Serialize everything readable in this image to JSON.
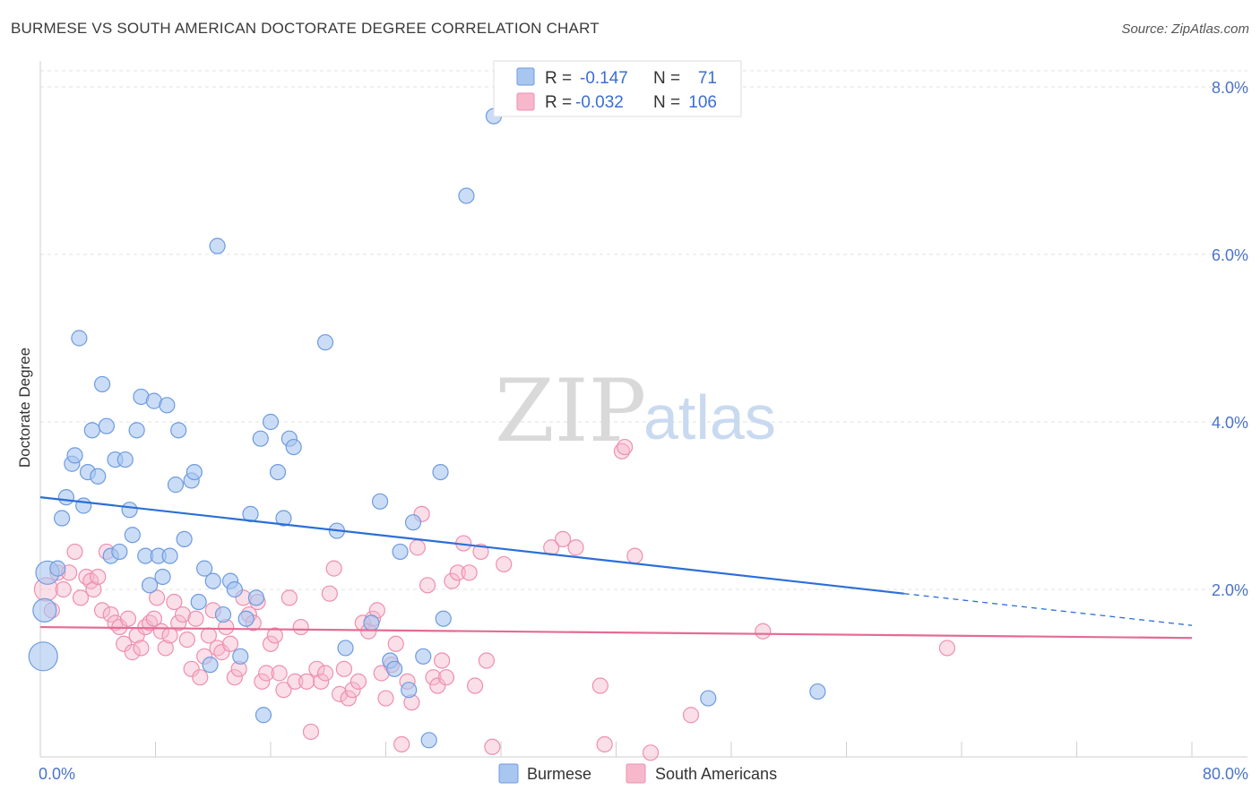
{
  "title": "BURMESE VS SOUTH AMERICAN DOCTORATE DEGREE CORRELATION CHART",
  "source": "Source: ZipAtlas.com",
  "watermark": {
    "zip": "ZIP",
    "atlas": "atlas"
  },
  "colors": {
    "burmese_fill": "#a9c6f0",
    "burmese_stroke": "#6d9be0",
    "burmese_line": "#2b6fd6",
    "south_fill": "#f7b8cc",
    "south_stroke": "#ee8fb0",
    "south_line": "#e46b95",
    "axis_text": "#4a74c9"
  },
  "legend": {
    "burmese": {
      "r_label": "R =",
      "r_value": "-0.147",
      "n_label": "N =",
      "n_value": "71"
    },
    "south": {
      "r_label": "R =",
      "r_value": "-0.032",
      "n_label": "N =",
      "n_value": "106"
    }
  },
  "bottom_legend": [
    "Burmese",
    "South Americans"
  ],
  "chart_data": {
    "type": "scatter",
    "ylabel": "Doctorate Degree",
    "xlim": [
      0,
      80
    ],
    "ylim": [
      0,
      8
    ],
    "x_tick_labels": {
      "min": "0.0%",
      "max": "80.0%"
    },
    "y_tick_labels": [
      {
        "value": 2,
        "label": "2.0%"
      },
      {
        "value": 4,
        "label": "4.0%"
      },
      {
        "value": 6,
        "label": "6.0%"
      },
      {
        "value": 8,
        "label": "8.0%"
      }
    ],
    "grid": true,
    "series": [
      {
        "name": "Burmese",
        "trend": {
          "x0": 0,
          "y0": 3.1,
          "x1": 60,
          "y1": 1.95,
          "dashed_to_x": 80,
          "dashed_to_y": 1.57
        },
        "points": [
          [
            0.2,
            1.2,
            3
          ],
          [
            0.3,
            1.75,
            2
          ],
          [
            0.5,
            2.2,
            2
          ],
          [
            1.2,
            2.25,
            1
          ],
          [
            1.5,
            2.85,
            1
          ],
          [
            1.8,
            3.1,
            1
          ],
          [
            2.2,
            3.5,
            1
          ],
          [
            2.4,
            3.6,
            1
          ],
          [
            2.7,
            5.0,
            1
          ],
          [
            3.0,
            3.0,
            1
          ],
          [
            3.3,
            3.4,
            1
          ],
          [
            3.6,
            3.9,
            1
          ],
          [
            4.0,
            3.35,
            1
          ],
          [
            4.3,
            4.45,
            1
          ],
          [
            4.6,
            3.95,
            1
          ],
          [
            4.9,
            2.4,
            1
          ],
          [
            5.2,
            3.55,
            1
          ],
          [
            5.5,
            2.45,
            1
          ],
          [
            5.9,
            3.55,
            1
          ],
          [
            6.2,
            2.95,
            1
          ],
          [
            6.4,
            2.65,
            1
          ],
          [
            6.7,
            3.9,
            1
          ],
          [
            7.0,
            4.3,
            1
          ],
          [
            7.3,
            2.4,
            1
          ],
          [
            7.6,
            2.05,
            1
          ],
          [
            7.9,
            4.25,
            1
          ],
          [
            8.2,
            2.4,
            1
          ],
          [
            8.5,
            2.15,
            1
          ],
          [
            8.8,
            4.2,
            1
          ],
          [
            9.0,
            2.4,
            1
          ],
          [
            9.4,
            3.25,
            1
          ],
          [
            9.6,
            3.9,
            1
          ],
          [
            10.0,
            2.6,
            1
          ],
          [
            10.5,
            3.3,
            1
          ],
          [
            10.7,
            3.4,
            1
          ],
          [
            11.0,
            1.85,
            1
          ],
          [
            11.4,
            2.25,
            1
          ],
          [
            11.8,
            1.1,
            1
          ],
          [
            12.0,
            2.1,
            1
          ],
          [
            12.3,
            6.1,
            1
          ],
          [
            12.7,
            1.7,
            1
          ],
          [
            13.2,
            2.1,
            1
          ],
          [
            13.5,
            2.0,
            1
          ],
          [
            13.9,
            1.2,
            1
          ],
          [
            14.3,
            1.65,
            1
          ],
          [
            14.6,
            2.9,
            1
          ],
          [
            15.0,
            1.9,
            1
          ],
          [
            15.3,
            3.8,
            1
          ],
          [
            15.5,
            0.5,
            1
          ],
          [
            16.0,
            4.0,
            1
          ],
          [
            16.5,
            3.4,
            1
          ],
          [
            16.9,
            2.85,
            1
          ],
          [
            17.3,
            3.8,
            1
          ],
          [
            17.6,
            3.7,
            1
          ],
          [
            19.8,
            4.95,
            1
          ],
          [
            20.6,
            2.7,
            1
          ],
          [
            21.2,
            1.3,
            1
          ],
          [
            23.0,
            1.6,
            1
          ],
          [
            23.6,
            3.05,
            1
          ],
          [
            24.3,
            1.15,
            1
          ],
          [
            24.6,
            1.05,
            1
          ],
          [
            25.0,
            2.45,
            1
          ],
          [
            25.6,
            0.8,
            1
          ],
          [
            25.9,
            2.8,
            1
          ],
          [
            26.6,
            1.2,
            1
          ],
          [
            27.0,
            0.2,
            1
          ],
          [
            27.8,
            3.4,
            1
          ],
          [
            28.0,
            1.65,
            1
          ],
          [
            29.6,
            6.7,
            1
          ],
          [
            31.5,
            7.65,
            1
          ],
          [
            46.4,
            0.7,
            1
          ],
          [
            54.0,
            0.78,
            1
          ]
        ]
      },
      {
        "name": "South Americans",
        "trend": {
          "x0": 0,
          "y0": 1.55,
          "x1": 80,
          "y1": 1.42
        },
        "points": [
          [
            0.4,
            2.0,
            2
          ],
          [
            0.8,
            1.75,
            1
          ],
          [
            1.2,
            2.2,
            1
          ],
          [
            1.6,
            2.0,
            1
          ],
          [
            2.0,
            2.2,
            1
          ],
          [
            2.4,
            2.45,
            1
          ],
          [
            2.8,
            1.9,
            1
          ],
          [
            3.2,
            2.15,
            1
          ],
          [
            3.5,
            2.1,
            1
          ],
          [
            3.7,
            2.0,
            1
          ],
          [
            4.0,
            2.15,
            1
          ],
          [
            4.3,
            1.75,
            1
          ],
          [
            4.6,
            2.45,
            1
          ],
          [
            4.9,
            1.7,
            1
          ],
          [
            5.2,
            1.6,
            1
          ],
          [
            5.5,
            1.55,
            1
          ],
          [
            5.8,
            1.35,
            1
          ],
          [
            6.1,
            1.65,
            1
          ],
          [
            6.4,
            1.25,
            1
          ],
          [
            6.7,
            1.45,
            1
          ],
          [
            7.0,
            1.3,
            1
          ],
          [
            7.3,
            1.55,
            1
          ],
          [
            7.6,
            1.6,
            1
          ],
          [
            7.9,
            1.65,
            1
          ],
          [
            8.1,
            1.9,
            1
          ],
          [
            8.4,
            1.5,
            1
          ],
          [
            8.7,
            1.3,
            1
          ],
          [
            9.0,
            1.45,
            1
          ],
          [
            9.3,
            1.85,
            1
          ],
          [
            9.6,
            1.6,
            1
          ],
          [
            9.9,
            1.7,
            1
          ],
          [
            10.2,
            1.4,
            1
          ],
          [
            10.5,
            1.05,
            1
          ],
          [
            10.8,
            1.65,
            1
          ],
          [
            11.1,
            0.95,
            1
          ],
          [
            11.4,
            1.2,
            1
          ],
          [
            11.7,
            1.45,
            1
          ],
          [
            12.0,
            1.75,
            1
          ],
          [
            12.3,
            1.3,
            1
          ],
          [
            12.6,
            1.25,
            1
          ],
          [
            12.9,
            1.55,
            1
          ],
          [
            13.2,
            1.35,
            1
          ],
          [
            13.5,
            0.95,
            1
          ],
          [
            13.8,
            1.05,
            1
          ],
          [
            14.1,
            1.9,
            1
          ],
          [
            14.5,
            1.7,
            1
          ],
          [
            14.8,
            1.6,
            1
          ],
          [
            15.1,
            1.85,
            1
          ],
          [
            15.4,
            0.9,
            1
          ],
          [
            15.7,
            1.0,
            1
          ],
          [
            16.0,
            1.35,
            1
          ],
          [
            16.3,
            1.45,
            1
          ],
          [
            16.6,
            1.0,
            1
          ],
          [
            16.9,
            0.8,
            1
          ],
          [
            17.3,
            1.9,
            1
          ],
          [
            17.7,
            0.9,
            1
          ],
          [
            18.1,
            1.55,
            1
          ],
          [
            18.5,
            0.9,
            1
          ],
          [
            18.8,
            0.3,
            1
          ],
          [
            19.2,
            1.05,
            1
          ],
          [
            19.5,
            0.9,
            1
          ],
          [
            19.8,
            1.0,
            1
          ],
          [
            20.1,
            1.95,
            1
          ],
          [
            20.4,
            2.25,
            1
          ],
          [
            20.8,
            0.75,
            1
          ],
          [
            21.1,
            1.05,
            1
          ],
          [
            21.4,
            0.7,
            1
          ],
          [
            21.7,
            0.8,
            1
          ],
          [
            22.1,
            0.9,
            1
          ],
          [
            22.4,
            1.6,
            1
          ],
          [
            22.8,
            1.5,
            1
          ],
          [
            23.1,
            1.65,
            1
          ],
          [
            23.4,
            1.75,
            1
          ],
          [
            23.7,
            1.0,
            1
          ],
          [
            24.0,
            0.7,
            1
          ],
          [
            24.4,
            1.1,
            1
          ],
          [
            24.7,
            1.35,
            1
          ],
          [
            25.1,
            0.15,
            1
          ],
          [
            25.5,
            0.9,
            1
          ],
          [
            25.8,
            0.65,
            1
          ],
          [
            26.2,
            2.5,
            1
          ],
          [
            26.5,
            2.9,
            1
          ],
          [
            26.9,
            2.05,
            1
          ],
          [
            27.3,
            0.95,
            1
          ],
          [
            27.6,
            0.85,
            1
          ],
          [
            27.9,
            1.15,
            1
          ],
          [
            28.2,
            0.95,
            1
          ],
          [
            28.6,
            2.1,
            1
          ],
          [
            29.0,
            2.2,
            1
          ],
          [
            29.4,
            2.55,
            1
          ],
          [
            29.8,
            2.2,
            1
          ],
          [
            30.2,
            0.85,
            1
          ],
          [
            30.6,
            2.45,
            1
          ],
          [
            31.0,
            1.15,
            1
          ],
          [
            31.4,
            0.12,
            1
          ],
          [
            32.2,
            2.3,
            1
          ],
          [
            35.5,
            2.5,
            1
          ],
          [
            36.3,
            2.6,
            1
          ],
          [
            37.2,
            2.5,
            1
          ],
          [
            38.9,
            0.85,
            1
          ],
          [
            39.2,
            0.15,
            1
          ],
          [
            40.4,
            3.65,
            1
          ],
          [
            40.6,
            3.7,
            1
          ],
          [
            41.3,
            2.4,
            1
          ],
          [
            42.4,
            0.05,
            1
          ],
          [
            45.2,
            0.5,
            1
          ],
          [
            50.2,
            1.5,
            1
          ],
          [
            63.0,
            1.3,
            1
          ]
        ]
      }
    ]
  }
}
